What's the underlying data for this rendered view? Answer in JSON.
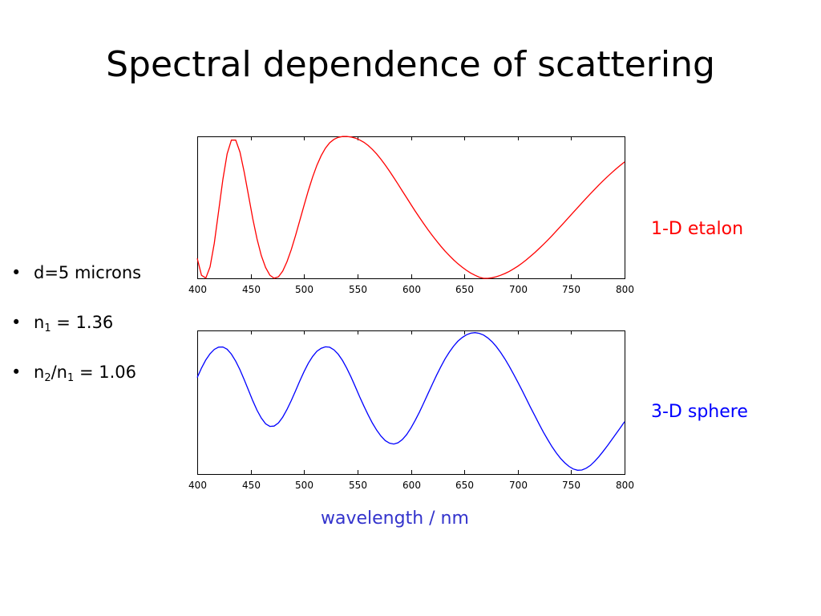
{
  "slide": {
    "title": "Spectral dependence of scattering",
    "bullets": {
      "d": "d=5 microns",
      "n1_prefix": "n",
      "n1_sub": "1",
      "n1_suffix": " = 1.36",
      "ratio_a": "n",
      "ratio_a_sub": "2",
      "ratio_mid": "/n",
      "ratio_b_sub": "1",
      "ratio_suffix": " = 1.06"
    },
    "label_top": "1-D etalon",
    "label_bottom": "3-D sphere",
    "xlabel": "wavelength / nm",
    "colors": {
      "etalon": "#ff0000",
      "sphere": "#0000ff",
      "axis_label": "#3333cc"
    }
  },
  "chart_data": [
    {
      "type": "line",
      "series": [
        {
          "name": "1-D etalon",
          "color": "#ff0000",
          "x": [
            400,
            404,
            408,
            412,
            416,
            420,
            424,
            428,
            432,
            436,
            440,
            444,
            448,
            452,
            456,
            460,
            464,
            468,
            472,
            476,
            480,
            484,
            488,
            492,
            496,
            500,
            504,
            508,
            512,
            516,
            520,
            524,
            528,
            532,
            536,
            540,
            544,
            548,
            552,
            556,
            560,
            564,
            568,
            572,
            576,
            580,
            584,
            588,
            592,
            596,
            600,
            604,
            608,
            612,
            616,
            620,
            624,
            628,
            632,
            636,
            640,
            644,
            648,
            652,
            656,
            660,
            664,
            668,
            672,
            676,
            680,
            684,
            688,
            692,
            696,
            700,
            704,
            708,
            712,
            716,
            720,
            724,
            728,
            732,
            736,
            740,
            744,
            748,
            752,
            756,
            760,
            764,
            768,
            772,
            776,
            780,
            784,
            788,
            792,
            796,
            800
          ],
          "y": [
            0.1408,
            0.0214,
            0.0015,
            0.0809,
            0.2478,
            0.4698,
            0.6969,
            0.8768,
            0.9732,
            0.9734,
            0.8893,
            0.7483,
            0.5825,
            0.4197,
            0.2768,
            0.1605,
            0.0756,
            0.0223,
            0.0008,
            0.0109,
            0.0506,
            0.1163,
            0.2023,
            0.3014,
            0.4076,
            0.5153,
            0.6184,
            0.7129,
            0.7954,
            0.864,
            0.9171,
            0.9546,
            0.9791,
            0.9931,
            0.9991,
            0.9992,
            0.9955,
            0.9876,
            0.9753,
            0.958,
            0.9356,
            0.9079,
            0.8753,
            0.8384,
            0.7979,
            0.7545,
            0.7092,
            0.6625,
            0.6151,
            0.5676,
            0.5205,
            0.4742,
            0.429,
            0.385,
            0.3425,
            0.3018,
            0.263,
            0.2263,
            0.1918,
            0.1597,
            0.1301,
            0.103,
            0.0785,
            0.0567,
            0.0375,
            0.0212,
            0.0078,
            0.0,
            0.0,
            0.0038,
            0.0111,
            0.0212,
            0.0337,
            0.0486,
            0.0659,
            0.0853,
            0.1068,
            0.1301,
            0.1551,
            0.1816,
            0.2095,
            0.2387,
            0.269,
            0.3002,
            0.3322,
            0.3648,
            0.3978,
            0.431,
            0.4643,
            0.4975,
            0.5305,
            0.5632,
            0.5953,
            0.6268,
            0.6576,
            0.6875,
            0.7164,
            0.7442,
            0.7708,
            0.7961,
            0.82
          ],
          "ylim": [
            0,
            1
          ]
        }
      ],
      "xlim": [
        400,
        800
      ],
      "xticks": [
        400,
        450,
        500,
        550,
        600,
        650,
        700,
        750,
        800
      ],
      "ylim": [
        0,
        1
      ]
    },
    {
      "type": "line",
      "series": [
        {
          "name": "3-D sphere",
          "color": "#0000ff",
          "x": [
            400,
            404,
            408,
            412,
            416,
            420,
            424,
            428,
            432,
            436,
            440,
            444,
            448,
            452,
            456,
            460,
            464,
            468,
            472,
            476,
            480,
            484,
            488,
            492,
            496,
            500,
            504,
            508,
            512,
            516,
            520,
            524,
            528,
            532,
            536,
            540,
            544,
            548,
            552,
            556,
            560,
            564,
            568,
            572,
            576,
            580,
            584,
            588,
            592,
            596,
            600,
            604,
            608,
            612,
            616,
            620,
            624,
            628,
            632,
            636,
            640,
            644,
            648,
            652,
            656,
            660,
            664,
            668,
            672,
            676,
            680,
            684,
            688,
            692,
            696,
            700,
            704,
            708,
            712,
            716,
            720,
            724,
            728,
            732,
            736,
            740,
            744,
            748,
            752,
            756,
            760,
            764,
            768,
            772,
            776,
            780,
            784,
            788,
            792,
            796,
            800
          ],
          "y": [
            0.672,
            0.738,
            0.795,
            0.838,
            0.868,
            0.884,
            0.885,
            0.869,
            0.835,
            0.786,
            0.726,
            0.657,
            0.583,
            0.51,
            0.444,
            0.39,
            0.35,
            0.332,
            0.334,
            0.356,
            0.396,
            0.449,
            0.512,
            0.579,
            0.648,
            0.714,
            0.772,
            0.819,
            0.855,
            0.876,
            0.886,
            0.883,
            0.865,
            0.834,
            0.791,
            0.737,
            0.675,
            0.608,
            0.539,
            0.473,
            0.412,
            0.355,
            0.305,
            0.264,
            0.233,
            0.215,
            0.209,
            0.218,
            0.24,
            0.275,
            0.32,
            0.373,
            0.432,
            0.495,
            0.56,
            0.625,
            0.688,
            0.747,
            0.802,
            0.85,
            0.891,
            0.925,
            0.951,
            0.97,
            0.981,
            0.985,
            0.98,
            0.968,
            0.948,
            0.921,
            0.887,
            0.847,
            0.801,
            0.751,
            0.697,
            0.641,
            0.583,
            0.524,
            0.464,
            0.406,
            0.348,
            0.292,
            0.24,
            0.191,
            0.148,
            0.11,
            0.078,
            0.053,
            0.035,
            0.026,
            0.028,
            0.04,
            0.06,
            0.088,
            0.121,
            0.158,
            0.198,
            0.239,
            0.28,
            0.322,
            0.364
          ],
          "ylim": [
            0,
            1
          ]
        }
      ],
      "xlim": [
        400,
        800
      ],
      "xticks": [
        400,
        450,
        500,
        550,
        600,
        650,
        700,
        750,
        800
      ],
      "ylim": [
        0,
        1
      ]
    }
  ]
}
